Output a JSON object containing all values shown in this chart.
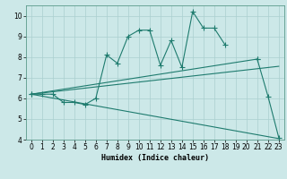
{
  "title": "",
  "xlabel": "Humidex (Indice chaleur)",
  "xlim": [
    -0.5,
    23.5
  ],
  "ylim": [
    4,
    10.5
  ],
  "bg_color": "#cce8e8",
  "line_color": "#1e7b6e",
  "grid_color": "#aacfcf",
  "xticks": [
    0,
    1,
    2,
    3,
    4,
    5,
    6,
    7,
    8,
    9,
    10,
    11,
    12,
    13,
    14,
    15,
    16,
    17,
    18,
    19,
    20,
    21,
    22,
    23
  ],
  "yticks": [
    4,
    5,
    6,
    7,
    8,
    9,
    10
  ],
  "lines": [
    {
      "x": [
        0,
        1,
        2,
        3,
        4,
        5,
        6,
        7,
        8,
        9,
        10,
        11,
        12,
        13,
        14,
        15,
        16,
        17,
        18,
        19,
        20,
        21,
        22,
        23
      ],
      "y": [
        6.2,
        6.2,
        6.2,
        5.8,
        5.8,
        5.7,
        6.0,
        8.1,
        7.7,
        9.0,
        9.3,
        9.3,
        7.6,
        8.8,
        7.5,
        10.2,
        9.4,
        9.4,
        8.6,
        null,
        null,
        7.9,
        6.1,
        4.1
      ],
      "has_markers": true
    },
    {
      "x": [
        0,
        21
      ],
      "y": [
        6.2,
        7.9
      ],
      "has_markers": true
    },
    {
      "x": [
        0,
        23
      ],
      "y": [
        6.2,
        7.55
      ],
      "has_markers": false
    },
    {
      "x": [
        0,
        23
      ],
      "y": [
        6.2,
        4.05
      ],
      "has_markers": false
    }
  ]
}
